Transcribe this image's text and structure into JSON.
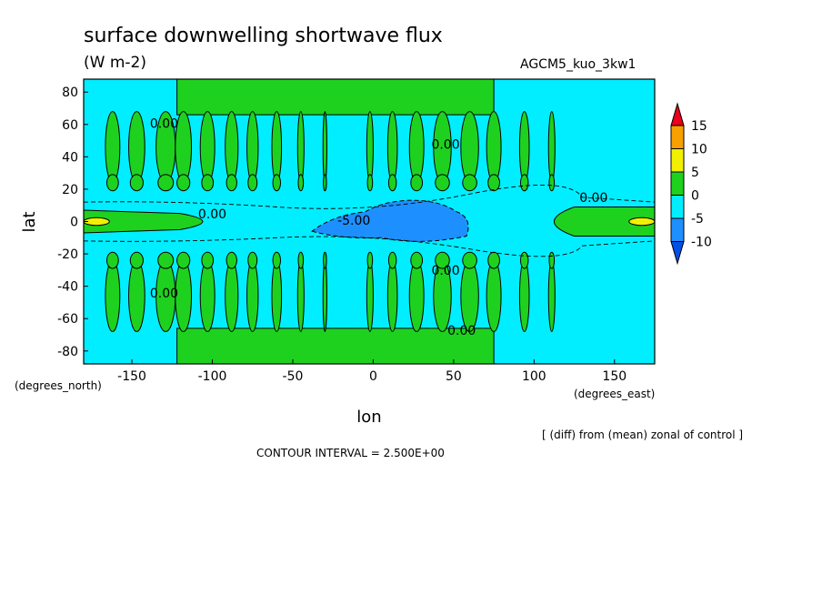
{
  "chart_data": {
    "type": "heatmap",
    "title": "surface downwelling shortwave flux",
    "units": "(W m-2)",
    "model_label": "AGCM5_kuo_3kw1",
    "xlabel": "lon",
    "ylabel": "lat",
    "x_unit_label": "(degrees_east)",
    "y_unit_label": "(degrees_north)",
    "xlim": [
      -180,
      175
    ],
    "ylim": [
      -88,
      88
    ],
    "x_ticks": [
      "-150",
      "-100",
      "-50",
      "0",
      "50",
      "100",
      "150"
    ],
    "y_ticks": [
      "80",
      "60",
      "40",
      "20",
      "0",
      "-20",
      "-40",
      "-60",
      "-80"
    ],
    "colorbar": {
      "levels": [
        "15",
        "10",
        "5",
        "0",
        "-5",
        "-10"
      ],
      "colors": [
        "#e8001c",
        "#f7a000",
        "#f0f000",
        "#1fd11f",
        "#00eeff",
        "#1e8fff",
        "#0050e6"
      ]
    },
    "contour_labels": [
      {
        "text": "0.00",
        "x": -130,
        "y": 58
      },
      {
        "text": "0.00",
        "x": 45,
        "y": 45
      },
      {
        "text": "0.00",
        "x": -100,
        "y": 2
      },
      {
        "text": "-5.00",
        "x": -12,
        "y": -2
      },
      {
        "text": "0.00",
        "x": 137,
        "y": 12
      },
      {
        "text": "0.00",
        "x": 45,
        "y": -33
      },
      {
        "text": "0.00",
        "x": -130,
        "y": -47
      },
      {
        "text": "0.00",
        "x": 55,
        "y": -70
      }
    ],
    "contour_interval": "CONTOUR INTERVAL = 2.500E+00",
    "annotation": "[ (diff) from (mean) zonal of control ]"
  }
}
